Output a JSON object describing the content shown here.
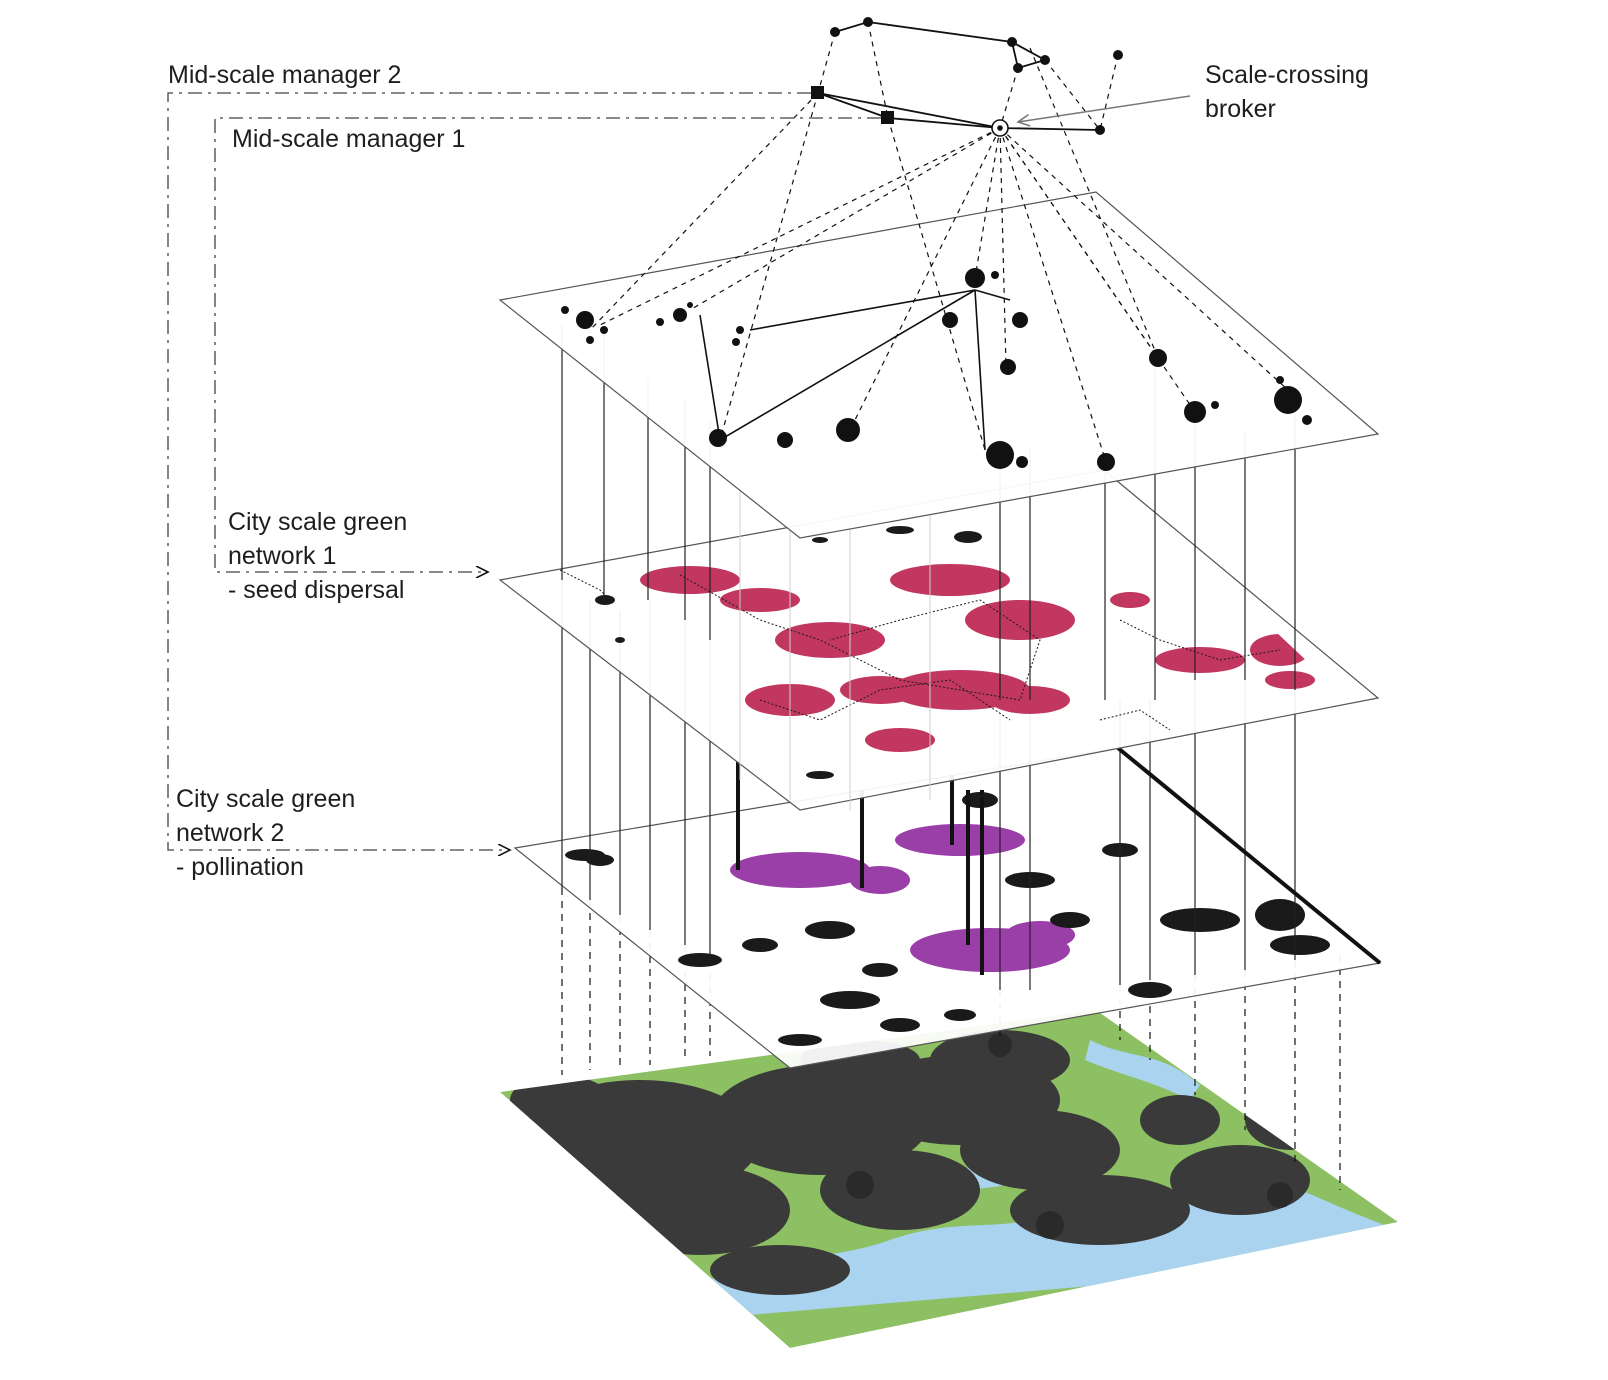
{
  "labels": {
    "manager2": "Mid-scale manager 2",
    "manager1": "Mid-scale manager 1",
    "broker_line1": "Scale-crossing",
    "broker_line2": "broker",
    "network1_line1": "City scale green",
    "network1_line2": "network 1",
    "network1_line3": "- seed dispersal",
    "network2_line1": "City scale green",
    "network2_line2": "network 2",
    "network2_line3": "- pollination"
  },
  "colors": {
    "ink": "#111111",
    "seed_dispersal": "#c2375f",
    "pollination": "#9a3fa8",
    "land_green": "#8cc063",
    "urban_dark": "#3a3a3a",
    "water": "#a9d3ee",
    "connector_grey": "#cfcfcf"
  },
  "layers": [
    "Scale-crossing broker",
    "Mid-scale manager 1",
    "Mid-scale manager 2",
    "City scale green network 1",
    "City scale green network 2"
  ]
}
